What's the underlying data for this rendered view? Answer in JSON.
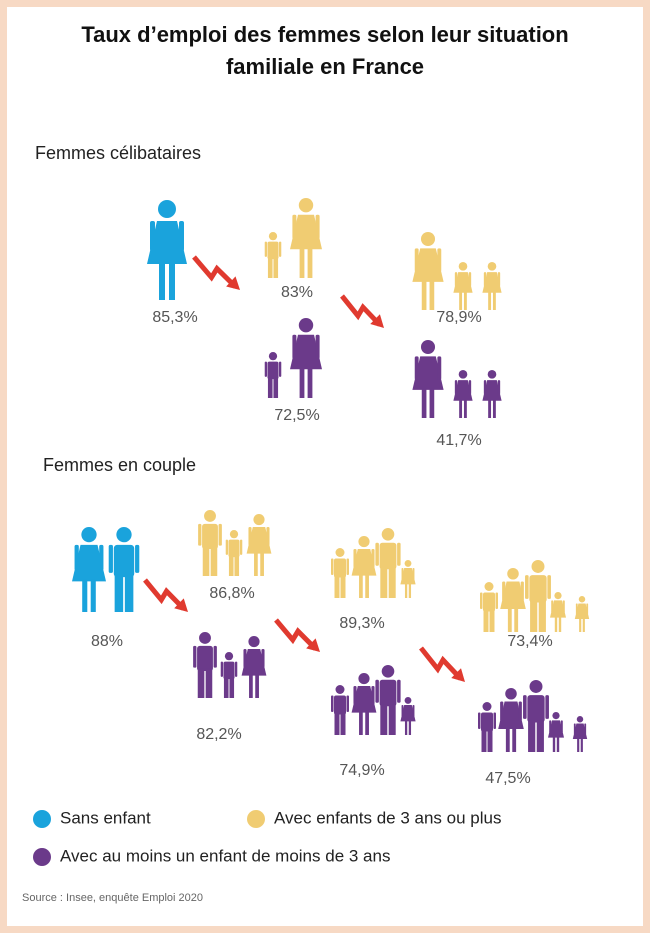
{
  "title_lines": [
    "Taux d’emploi des femmes selon leur situation",
    "familiale en France"
  ],
  "sections": [
    {
      "heading": "Femmes célibataires",
      "labels": [
        "85,3%",
        "83%",
        "72,5%",
        "78,9%",
        "41,7%"
      ]
    },
    {
      "heading": "Femmes en couple",
      "labels": [
        "88%",
        "86,8%",
        "82,2%",
        "89,3%",
        "74,9%",
        "73,4%",
        "47,5%"
      ]
    }
  ],
  "legend": [
    {
      "label": "Sans enfant",
      "color": "#1aa3dc"
    },
    {
      "label": "Avec enfants de 3 ans ou plus",
      "color": "#f0cc72"
    },
    {
      "label": "Avec au moins un enfant de moins de 3 ans",
      "color": "#6b3a8a"
    }
  ],
  "source": "Source : Insee, enquête Emploi 2020"
}
